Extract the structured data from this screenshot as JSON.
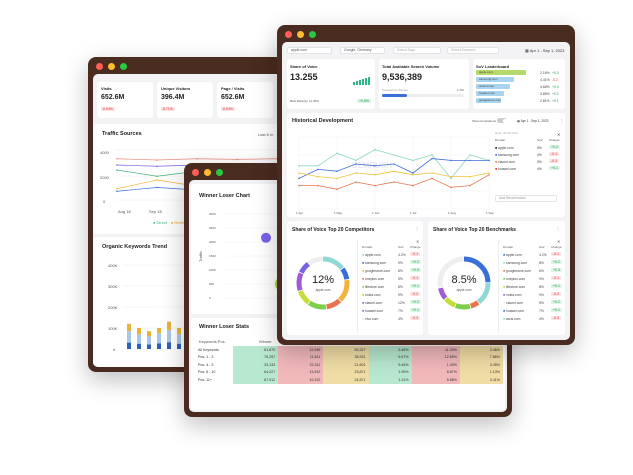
{
  "colors": {
    "frame": "#4a2b1f",
    "red": "#ff5f57",
    "yellow": "#febc2e",
    "green": "#28c840",
    "teal": "#8fd8d3",
    "blue": "#3b6fd8",
    "orange": "#f0b43c",
    "coral": "#e8734e",
    "purple": "#7b61e8",
    "lime": "#a6cf3a"
  },
  "back": {
    "kpis": [
      {
        "label": "Visits",
        "value": "652.6M",
        "change": "6.94%"
      },
      {
        "label": "Unique Visitors",
        "value": "396.4M",
        "change": "6.71%"
      },
      {
        "label": "Page / Visits",
        "value": "652.6M",
        "change": "6.94%"
      }
    ],
    "traffic": {
      "title": "Traffic Sources",
      "range": "Last 6 m",
      "yticks": [
        "4000",
        "2000",
        "0"
      ],
      "xticks": [
        "Aug 18",
        "Sep 18"
      ],
      "legend": [
        "Direct",
        "Referral"
      ],
      "series": [
        {
          "color": "#e88a7a",
          "values": [
            3300,
            3200,
            3300,
            3250,
            3300
          ]
        },
        {
          "color": "#7b61e8",
          "values": [
            2800,
            2700,
            2800,
            2750,
            2800
          ]
        },
        {
          "color": "#39b57a",
          "values": [
            2400,
            1900,
            2300,
            2200,
            2300
          ]
        },
        {
          "color": "#f0b43c",
          "values": [
            900,
            1600,
            1100,
            1300,
            1200
          ]
        },
        {
          "color": "#3b6fd8",
          "values": [
            700,
            1000,
            800,
            900,
            850
          ]
        }
      ]
    },
    "organic": {
      "title": "Organic Keywords Trend",
      "yticks": [
        "400K",
        "300K",
        "200K",
        "100K",
        "0"
      ],
      "bars": [
        [
          85,
          35
        ],
        [
          70,
          30
        ],
        [
          60,
          25
        ],
        [
          75,
          25
        ],
        [
          90,
          40
        ],
        [
          70,
          30
        ],
        [
          65,
          25
        ],
        [
          100,
          60
        ],
        [
          120,
          80
        ],
        [
          140,
          60
        ],
        [
          160,
          70
        ],
        [
          200,
          110
        ],
        [
          170,
          90
        ],
        [
          150,
          70
        ],
        [
          130,
          60
        ]
      ]
    }
  },
  "middle": {
    "chart": {
      "title": "Winner Loser Chart",
      "yticks": [
        "3000",
        "2500",
        "2000",
        "1500",
        "1000",
        "500",
        "0"
      ],
      "ylabel": "Traffic",
      "bubbles": [
        {
          "x": 1,
          "y": 2150,
          "r": 5,
          "color": "#7b61e8"
        },
        {
          "x": 1.7,
          "y": 1700,
          "r": 8,
          "color": "#9b5cd6"
        },
        {
          "x": 1.4,
          "y": 500,
          "r": 7,
          "color": "#a6cf3a"
        },
        {
          "x": 1.8,
          "y": 450,
          "r": 7,
          "color": "#f0b43c"
        }
      ]
    },
    "stats": {
      "title": "Winner Loser Stats",
      "headers": [
        "Keywords Pos.",
        "Winner"
      ],
      "rows": [
        {
          "label": "All Keywords",
          "cells": [
            "61,870",
            "12,946",
            "59,327",
            "5.46%",
            "11.20%",
            "3.46%"
          ]
        },
        {
          "label": "Pos. 1 - 3",
          "cells": [
            "76,257",
            "11,611",
            "38,931",
            "6.67%",
            "12.85%",
            "7.86%"
          ]
        },
        {
          "label": "Pos. 4 - 5",
          "cells": [
            "33,133",
            "22,311",
            "21,601",
            "5.45%",
            "1.40%",
            "3.45%"
          ]
        },
        {
          "label": "Pos. 6 - 10",
          "cells": [
            "64,227",
            "13,932",
            "23,871",
            "1.95%",
            "8.87%",
            "1.13%"
          ]
        },
        {
          "label": "Pos. 11+",
          "cells": [
            "87,912",
            "19,332",
            "24,871",
            "1.31%",
            "5.86%",
            "3.41%"
          ]
        }
      ]
    }
  },
  "front": {
    "filters": {
      "domain": "apple.com",
      "engine": "Google, Germany",
      "tags": "Select Tags",
      "keyword": "Select Keyword",
      "date": "Apr 1 - Sep 1, 2023"
    },
    "sov": {
      "title": "Share of Voice",
      "value": "13.255",
      "sub": "Best Rank(s): 11.35%",
      "badge": "+0.8%"
    },
    "volume": {
      "title": "Total Available Search Volume",
      "value": "9,536,389",
      "sub": "Covered by domain",
      "covered": "1.7M",
      "progress": 0.3
    },
    "leaderboard": {
      "title": "SoV Leaderboard",
      "items": [
        {
          "domain": "apple.com",
          "value": "2.16%",
          "change": "+0.3",
          "up": true,
          "share": 1
        },
        {
          "domain": "samsung.com",
          "value": "4.41%",
          "change": "-0.2",
          "up": false,
          "share": 0.75
        },
        {
          "domain": "xiaomi.com",
          "value": "4.66%",
          "change": "+0.3",
          "up": true,
          "share": 0.67
        },
        {
          "domain": "huawei.com",
          "value": "3.85%",
          "change": "+0.2",
          "up": true,
          "share": 0.55
        },
        {
          "domain": "googlestore.com",
          "value": "2.81%",
          "change": "+0.1",
          "up": true,
          "share": 0.5
        }
      ]
    },
    "history": {
      "title": "Historical Development",
      "annotations": "Show Annotations",
      "date": "Apr 1 - Sep 1, 2023",
      "xticks": [
        "1 Apr",
        "1 May",
        "1 Jun",
        "1 Jul",
        "1 Aug",
        "1 Sep"
      ],
      "yticks": [
        "40",
        "30",
        "20",
        "10",
        "0"
      ],
      "watermark": "SEMRUSH",
      "series": [
        {
          "color": "#8fd8c0",
          "values": [
            24,
            24,
            31,
            27,
            33,
            30,
            27,
            30,
            17,
            30,
            27
          ]
        },
        {
          "color": "#3b6fd8",
          "values": [
            17,
            22,
            21,
            25,
            24,
            25,
            20,
            28,
            27,
            27,
            27
          ]
        },
        {
          "color": "#f0c43c",
          "values": [
            20,
            18,
            17,
            20,
            19,
            21,
            19,
            20,
            18,
            18,
            20
          ]
        },
        {
          "color": "#e8734e",
          "values": [
            13,
            13,
            11,
            15,
            13,
            15,
            13,
            17,
            12,
            13,
            19
          ]
        }
      ],
      "tooltip": {
        "date": "Date: 30.06.2023",
        "headers": [
          "Domain",
          "SoV",
          "Change"
        ],
        "rows": [
          {
            "domain": "apple.com",
            "sov": "5%",
            "change": "+0.2",
            "up": true
          },
          {
            "domain": "samsung.com",
            "sov": "4%",
            "change": "-0.1",
            "up": false
          },
          {
            "domain": "xiaomi.com",
            "sov": "5%",
            "change": "-0.3",
            "up": false
          },
          {
            "domain": "huawei.com",
            "sov": "4%",
            "change": "+0.1",
            "up": true
          }
        ]
      },
      "benchmark": "Add Benchmarks"
    },
    "donuts": [
      {
        "title": "Share of Voice Top 20 Competitors",
        "value": "12%",
        "domain": "apple.com",
        "segments": [
          {
            "c": "#8fd8d3",
            "v": 15
          },
          {
            "c": "#3b6fd8",
            "v": 8
          },
          {
            "c": "#f0b43c",
            "v": 15
          },
          {
            "c": "#e8734e",
            "v": 10
          },
          {
            "c": "#7ccf4a",
            "v": 12
          },
          {
            "c": "#c5dd3a",
            "v": 10
          },
          {
            "c": "#9b5cd6",
            "v": 12
          },
          {
            "c": "#7b61e8",
            "v": 8
          },
          {
            "c": "#eeeeee",
            "v": 10
          }
        ],
        "rows": [
          [
            "apple.com",
            "4.2%",
            "-0.1"
          ],
          [
            "samsung.com",
            "9%",
            "+0.2"
          ],
          [
            "googlestore.com",
            "8%",
            "+0.3"
          ],
          [
            "oneplus.com",
            "5%",
            "-0.1"
          ],
          [
            "lifestore.com",
            "8%",
            "+0.1"
          ],
          [
            "nokia.com",
            "9%",
            "-0.2"
          ],
          [
            "xiaomi.com",
            "12%",
            "+0.2"
          ],
          [
            "huawei.com",
            "7%",
            "+0.1"
          ],
          [
            "vivo.com",
            "4%",
            "-0.3"
          ]
        ]
      },
      {
        "title": "Share of Voice Top 20 Benchmarks",
        "value": "8.5%",
        "domain": "apple.com",
        "segments": [
          {
            "c": "#3b6fd8",
            "v": 25
          },
          {
            "c": "#8fd8d3",
            "v": 15
          },
          {
            "c": "#e8734e",
            "v": 6
          },
          {
            "c": "#7ccf4a",
            "v": 10
          },
          {
            "c": "#c5dd3a",
            "v": 8
          },
          {
            "c": "#9b5cd6",
            "v": 8
          },
          {
            "c": "#eeeeee",
            "v": 28
          }
        ],
        "rows": [
          [
            "apple.com",
            "4.2%",
            "-0.1"
          ],
          [
            "samsung.com",
            "8%",
            "+0.2"
          ],
          [
            "googlestore.com",
            "6%",
            "+0.3"
          ],
          [
            "oneplus.com",
            "9%",
            "-0.1"
          ],
          [
            "lifestore.com",
            "8%",
            "+0.1"
          ],
          [
            "nokia.com",
            "9%",
            "-0.2"
          ],
          [
            "xiaomi.com",
            "5%",
            "+0.2"
          ],
          [
            "huawei.com",
            "7%",
            "+0.1"
          ],
          [
            "asus.com",
            "4%",
            "-0.3"
          ]
        ]
      }
    ]
  }
}
